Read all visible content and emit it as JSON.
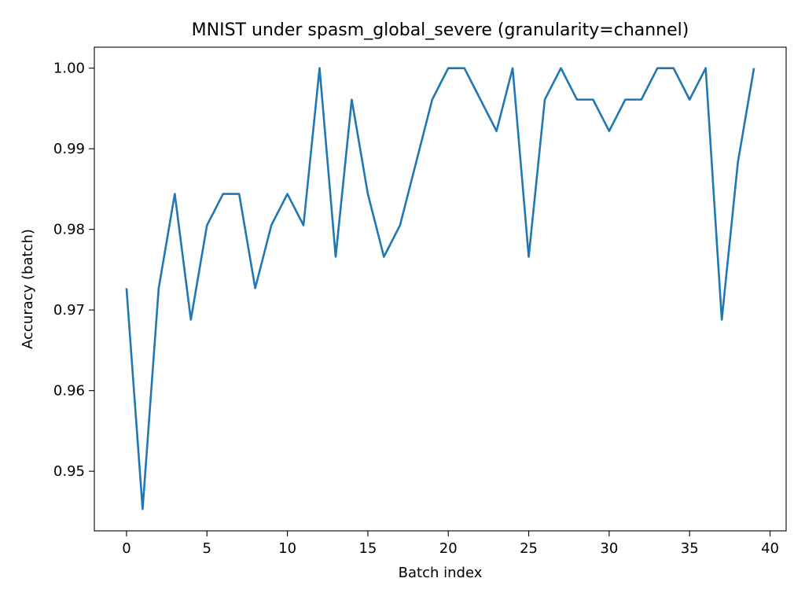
{
  "chart_data": {
    "type": "line",
    "title": "MNIST under spasm_global_severe (granularity=channel)",
    "xlabel": "Batch index",
    "ylabel": "Accuracy (batch)",
    "xlim": [
      -2,
      41
    ],
    "ylim": [
      0.9426,
      1.0026
    ],
    "xticks": [
      0,
      5,
      10,
      15,
      20,
      25,
      30,
      35,
      40
    ],
    "xtick_labels": [
      "0",
      "5",
      "10",
      "15",
      "20",
      "25",
      "30",
      "35",
      "40"
    ],
    "yticks": [
      0.95,
      0.96,
      0.97,
      0.98,
      0.99,
      1.0
    ],
    "ytick_labels": [
      "0.95",
      "0.96",
      "0.97",
      "0.98",
      "0.99",
      "1.00"
    ],
    "grid": false,
    "colors": {
      "series": "#1f77b4",
      "axes": "#000000",
      "background": "#ffffff"
    },
    "series": [
      {
        "x": [
          0,
          1,
          2,
          3,
          4,
          5,
          6,
          7,
          8,
          9,
          10,
          11,
          12,
          13,
          14,
          15,
          16,
          17,
          18,
          19,
          20,
          21,
          22,
          23,
          24,
          25,
          26,
          27,
          28,
          29,
          30,
          31,
          32,
          33,
          34,
          35,
          36,
          37,
          38,
          39
        ],
        "values": [
          0.9727,
          0.9453,
          0.9727,
          0.9844,
          0.9688,
          0.9805,
          0.9844,
          0.9844,
          0.9727,
          0.9805,
          0.9844,
          0.9805,
          1.0,
          0.9766,
          0.9961,
          0.9844,
          0.9766,
          0.9805,
          0.9883,
          0.9961,
          1.0,
          1.0,
          0.9961,
          0.9922,
          1.0,
          0.9766,
          0.9961,
          1.0,
          0.9961,
          0.9961,
          0.9922,
          0.9961,
          0.9961,
          1.0,
          1.0,
          0.9961,
          1.0,
          0.9688,
          0.9883,
          1.0
        ]
      }
    ]
  }
}
